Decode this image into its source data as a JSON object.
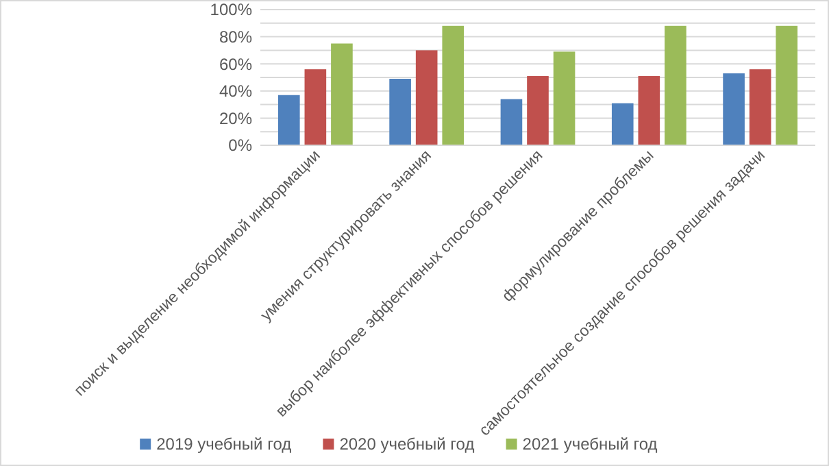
{
  "chart_data": {
    "type": "bar",
    "categories": [
      "поиск и выделение необходимой информации",
      "умения структурировать знания",
      "выбор наиболее эффективных способов решения",
      "формулирование проблемы",
      "самостоятельное создание способов решения задачи"
    ],
    "series": [
      {
        "name": "2019 учебный год",
        "color": "#4f81bd",
        "values": [
          37,
          49,
          34,
          31,
          53
        ]
      },
      {
        "name": "2020 учебный год",
        "color": "#c0504d",
        "values": [
          56,
          70,
          51,
          51,
          56
        ]
      },
      {
        "name": "2021 учебный год",
        "color": "#9bbb59",
        "values": [
          75,
          88,
          69,
          88,
          88
        ]
      }
    ],
    "ylim": [
      0,
      100
    ],
    "yticks": [
      {
        "value": 0,
        "label": "0%"
      },
      {
        "value": 10,
        "label": null
      },
      {
        "value": 20,
        "label": "20%"
      },
      {
        "value": 30,
        "label": null
      },
      {
        "value": 40,
        "label": "40%"
      },
      {
        "value": 50,
        "label": null
      },
      {
        "value": 60,
        "label": "60%"
      },
      {
        "value": 70,
        "label": null
      },
      {
        "value": 80,
        "label": "80%"
      },
      {
        "value": 90,
        "label": null
      },
      {
        "value": 100,
        "label": "100%"
      }
    ],
    "grid": true,
    "legend": "bottom"
  }
}
